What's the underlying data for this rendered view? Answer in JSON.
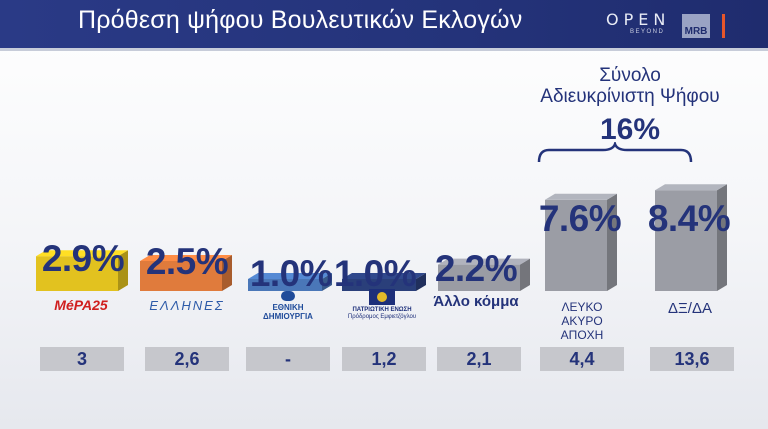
{
  "header": {
    "title": "Πρόθεση ψήφου Βουλευτικών Εκλογών",
    "open_word": "OPEN",
    "open_sub": "BEYOND",
    "mrb": "MRB"
  },
  "total": {
    "label_line1": "Σύνολο",
    "label_line2": "Αδιευκρίνιστη Ψήφου",
    "value": "16%"
  },
  "chart_data": {
    "type": "bar",
    "categories": [
      "ΜέΡΑ25",
      "ΕΛΛΗΝΕΣ",
      "ΕΘΝΙΚΗ ΔΗΜΙΟΥΡΓΙΑ",
      "ΠΑΤΡΙΩΤΙΚΗ ΕΝΩΣΗ",
      "Άλλο κόμμα",
      "ΛΕΥΚΟ ΑΚΥΡΟ ΑΠΟΧΗ",
      "ΔΞ/ΔΑ"
    ],
    "values": [
      2.9,
      2.5,
      1.0,
      1.0,
      2.2,
      7.6,
      8.4
    ],
    "value_labels": [
      "2.9%",
      "2.5%",
      "1.0%",
      "1.0%",
      "2.2%",
      "7.6%",
      "8.4%"
    ],
    "previous_labels": [
      "3",
      "2,6",
      "-",
      "1,2",
      "2,1",
      "4,4",
      "13,6"
    ],
    "bar_colors": [
      "#e2c21f",
      "#e07b3c",
      "#4a77b8",
      "#2a3f7a",
      "#9a9ca4",
      "#9b9da5",
      "#9b9da5"
    ]
  },
  "parties": {
    "mera_name": "MéΡΑ25",
    "ellines_name": "ΕΛΛΗΝΕΣ",
    "ethniki_line1": "ΕΘΝΙΚΗ",
    "ethniki_line2": "ΔΗΜΙΟΥΡΓΙΑ",
    "patriotiki_line1": "ΠΑΤΡΙΩΤΙΚΗ ΕΝΩΣΗ",
    "patriotiki_line2": "Πρόδρομος Εμφιετζόγλου",
    "allo": "Άλλο κόμμα",
    "lefko_line1": "ΛΕΥΚΟ",
    "lefko_line2": "ΑΚΥΡΟ",
    "lefko_line3": "ΑΠΟΧΗ",
    "dxda": "ΔΞ/ΔΑ"
  }
}
